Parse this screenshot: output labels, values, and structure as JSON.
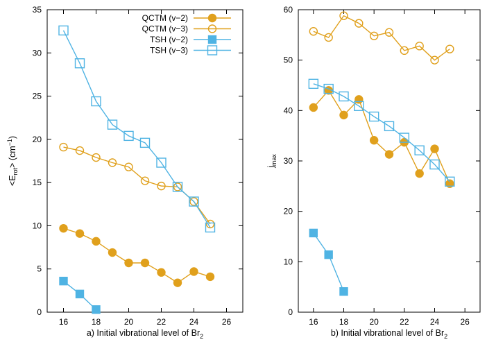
{
  "chart_data": [
    {
      "type": "line",
      "xlabel": "a) Initial vibrational level of Br",
      "xlabel_sub": "2",
      "ylabel": "<E",
      "ylabel_sub": "rot",
      "ylabel_tail": "> (cm",
      "ylabel_sup": "−1",
      "ylabel_end": ")",
      "xlim": [
        15,
        27
      ],
      "ylim": [
        0,
        35
      ],
      "xticks": [
        16,
        18,
        20,
        22,
        24,
        26
      ],
      "yticks": [
        0,
        5,
        10,
        15,
        20,
        25,
        30,
        35
      ],
      "grid": false,
      "legend": "top-right",
      "series": [
        {
          "name": "QCTM (v−2)",
          "color": "#e0a01c",
          "marker": "circle-filled",
          "x": [
            16,
            17,
            18,
            19,
            20,
            21,
            22,
            23,
            24,
            25
          ],
          "values": [
            9.7,
            9.1,
            8.2,
            6.9,
            5.7,
            5.7,
            4.6,
            3.4,
            4.7,
            4.1
          ]
        },
        {
          "name": "QCTM (v−3)",
          "color": "#e0a01c",
          "marker": "circle-open",
          "x": [
            16,
            17,
            18,
            19,
            20,
            21,
            22,
            23,
            24,
            25
          ],
          "values": [
            19.1,
            18.7,
            17.9,
            17.3,
            16.8,
            15.2,
            14.6,
            14.5,
            12.8,
            10.2
          ]
        },
        {
          "name": "TSH (v−2)",
          "color": "#4fb3e3",
          "marker": "square-filled",
          "x": [
            16,
            17,
            18
          ],
          "values": [
            3.6,
            2.1,
            0.3
          ]
        },
        {
          "name": "TSH (v−3)",
          "color": "#4fb3e3",
          "marker": "square-open",
          "x": [
            16,
            17,
            18,
            19,
            20,
            21,
            22,
            23,
            24,
            25
          ],
          "values": [
            32.6,
            28.8,
            24.4,
            21.7,
            20.4,
            19.6,
            17.3,
            14.5,
            12.8,
            9.8
          ]
        }
      ]
    },
    {
      "type": "line",
      "xlabel": "b) Initial vibrational level of Br",
      "xlabel_sub": "2",
      "ylabel": "j",
      "ylabel_sub": "max",
      "xlim": [
        15,
        27
      ],
      "ylim": [
        0,
        60
      ],
      "xticks": [
        16,
        18,
        20,
        22,
        24,
        26
      ],
      "yticks": [
        0,
        10,
        20,
        30,
        40,
        50,
        60
      ],
      "grid": false,
      "series": [
        {
          "color": "#e0a01c",
          "marker": "circle-filled",
          "x": [
            16,
            17,
            18,
            19,
            20,
            21,
            22,
            23,
            24,
            25
          ],
          "values": [
            40.6,
            44.0,
            39.1,
            42.2,
            34.1,
            31.3,
            33.7,
            27.5,
            32.4,
            25.5
          ]
        },
        {
          "color": "#e0a01c",
          "marker": "circle-open",
          "x": [
            16,
            17,
            18,
            19,
            20,
            21,
            22,
            23,
            24,
            25
          ],
          "values": [
            55.7,
            54.5,
            58.8,
            57.3,
            54.8,
            55.5,
            51.9,
            52.8,
            50.0,
            52.2
          ]
        },
        {
          "color": "#4fb3e3",
          "marker": "square-filled",
          "x": [
            16,
            17,
            18
          ],
          "values": [
            15.7,
            11.4,
            4.1
          ]
        },
        {
          "color": "#4fb3e3",
          "marker": "square-open",
          "x": [
            16,
            17,
            18,
            19,
            20,
            21,
            22,
            23,
            24,
            25
          ],
          "values": [
            45.3,
            44.3,
            42.8,
            40.9,
            38.8,
            36.9,
            34.6,
            32.1,
            29.3,
            25.9
          ]
        }
      ]
    }
  ]
}
